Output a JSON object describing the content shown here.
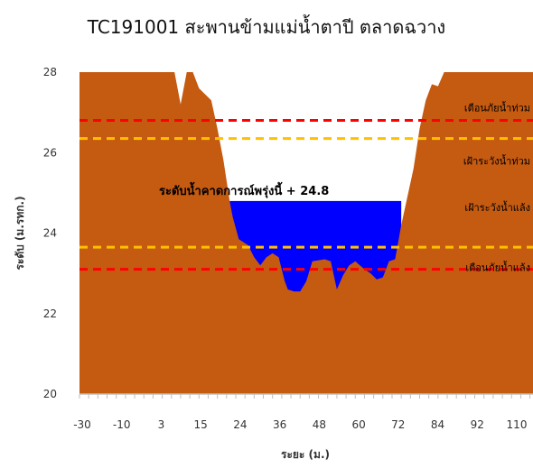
{
  "chart_data": {
    "type": "area",
    "title": "TC191001 สะพานข้ามแม่น้ำตาปี ตลาดฉวาง",
    "xlabel": "ระยะ (ม.)",
    "ylabel": "ระดับ (ม.รทก.)",
    "xlim": [
      -30,
      118
    ],
    "ylim": [
      20,
      28
    ],
    "x_ticks": [
      -30,
      -10,
      3,
      15,
      24,
      36,
      48,
      60,
      72,
      84,
      92,
      110
    ],
    "y_ticks": [
      20,
      22,
      24,
      26,
      28
    ],
    "grid": false,
    "series": [
      {
        "name": "",
        "color": "#c55a11",
        "points": [
          [
            -30,
            28
          ],
          [
            1,
            28
          ],
          [
            3,
            27.2
          ],
          [
            5,
            28
          ],
          [
            7,
            28
          ],
          [
            9,
            27.6
          ],
          [
            13,
            27.3
          ],
          [
            15,
            26.6
          ],
          [
            17,
            25.8
          ],
          [
            19,
            24.8
          ],
          [
            20,
            24.4
          ],
          [
            22,
            23.85
          ],
          [
            25,
            23.7
          ],
          [
            27,
            23.4
          ],
          [
            29,
            23.2
          ],
          [
            31,
            23.4
          ],
          [
            33,
            23.5
          ],
          [
            35,
            23.4
          ],
          [
            37,
            22.8
          ],
          [
            38,
            22.6
          ],
          [
            40,
            22.55
          ],
          [
            42,
            22.55
          ],
          [
            44,
            22.8
          ],
          [
            46,
            23.3
          ],
          [
            50,
            23.35
          ],
          [
            52,
            23.3
          ],
          [
            54,
            22.6
          ],
          [
            56,
            22.95
          ],
          [
            58,
            23.2
          ],
          [
            60,
            23.3
          ],
          [
            63,
            23.1
          ],
          [
            65,
            23.0
          ],
          [
            67,
            22.85
          ],
          [
            69,
            22.9
          ],
          [
            71,
            23.3
          ],
          [
            73,
            23.35
          ],
          [
            75,
            24.2
          ],
          [
            77,
            24.9
          ],
          [
            79,
            25.6
          ],
          [
            81,
            26.6
          ],
          [
            83,
            27.3
          ],
          [
            85,
            27.7
          ],
          [
            87,
            27.65
          ],
          [
            89,
            28
          ],
          [
            118,
            28
          ]
        ]
      }
    ],
    "water_level": {
      "value": 24.8,
      "color": "#0000ff",
      "label": "ระดับน้ำคาดการณ์พรุ่งนี้ + 24.8"
    },
    "reference_lines": [
      {
        "label": "เตือนภัยน้ำท่วม",
        "value": 26.8,
        "color": "#ff0000"
      },
      {
        "label": "เฝ้าระวังน้ำท่วม",
        "value": 26.35,
        "color": "#ffc000"
      },
      {
        "label": "เฝ้าระวังน้ำแล้ง",
        "value": 23.65,
        "color": "#ffc000"
      },
      {
        "label": "เตือนภัยน้ำแล้ง",
        "value": 23.1,
        "color": "#ff0000"
      }
    ]
  }
}
